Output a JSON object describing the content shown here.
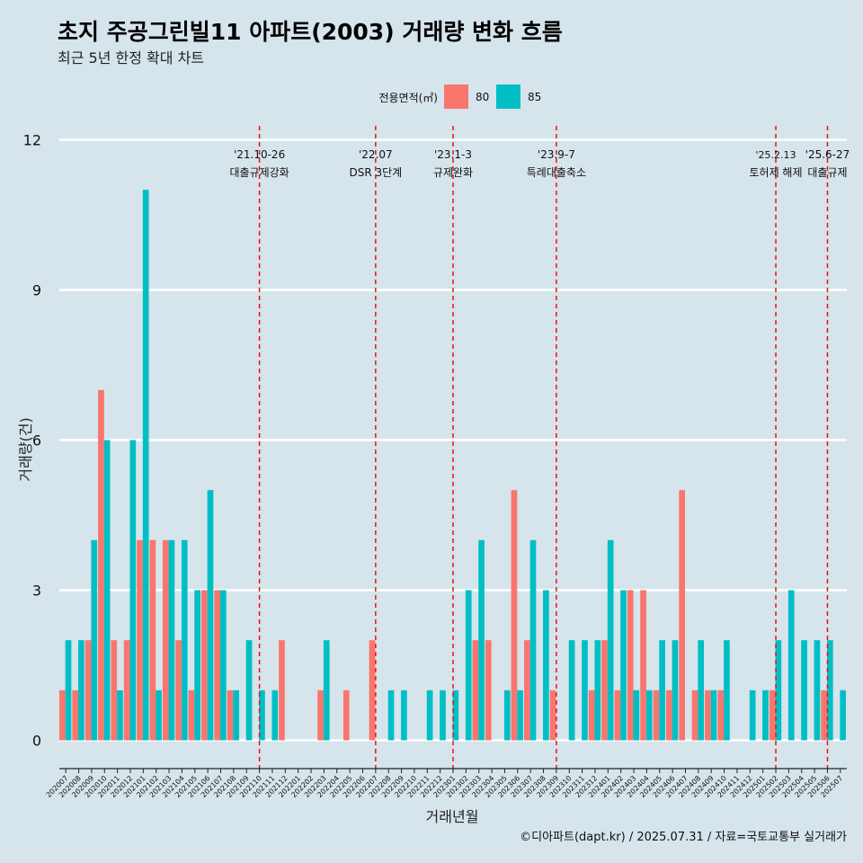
{
  "colors": {
    "s80": "#f8766d",
    "s85": "#00bfc4",
    "background": "#d6e4ec",
    "grid": "#ffffff",
    "event_line": "#ee1111"
  },
  "chart_data": {
    "type": "bar",
    "title": "초지 주공그린빌11 아파트(2003) 거래량 변화 흐름",
    "subtitle": "최근 5년 한정 확대 차트",
    "xlabel": "거래년월",
    "ylabel": "거래량(건)",
    "ylim": [
      0,
      12
    ],
    "yticks": [
      0,
      3,
      6,
      9,
      12
    ],
    "legend_title": "전용면적(㎡)",
    "legend_position": "top",
    "caption": "©디아파트(dapt.kr) / 2025.07.31 / 자료=국토교통부 실거래가",
    "categories": [
      "202007",
      "202008",
      "202009",
      "202010",
      "202011",
      "202012",
      "202101",
      "202102",
      "202103",
      "202104",
      "202105",
      "202106",
      "202107",
      "202108",
      "202109",
      "202110",
      "202111",
      "202112",
      "202201",
      "202202",
      "202203",
      "202204",
      "202205",
      "202206",
      "202207",
      "202208",
      "202209",
      "202210",
      "202211",
      "202212",
      "202301",
      "202302",
      "202303",
      "202304",
      "202305",
      "202306",
      "202307",
      "202308",
      "202309",
      "202310",
      "202311",
      "202312",
      "202401",
      "202402",
      "202403",
      "202404",
      "202405",
      "202406",
      "202407",
      "202408",
      "202409",
      "202410",
      "202411",
      "202412",
      "202501",
      "202502",
      "202503",
      "202504",
      "202505",
      "202506",
      "202507"
    ],
    "series": [
      {
        "name": "80",
        "color": "#f8766d",
        "values": [
          1,
          1,
          2,
          7,
          2,
          2,
          4,
          4,
          4,
          2,
          1,
          3,
          3,
          1,
          0,
          0,
          0,
          2,
          0,
          0,
          1,
          0,
          1,
          0,
          2,
          0,
          0,
          0,
          0,
          0,
          0,
          0,
          2,
          2,
          0,
          5,
          2,
          0,
          1,
          0,
          0,
          1,
          2,
          1,
          3,
          3,
          1,
          1,
          5,
          1,
          1,
          1,
          0,
          0,
          0,
          1,
          0,
          0,
          0,
          1,
          0
        ]
      },
      {
        "name": "85",
        "color": "#00bfc4",
        "values": [
          2,
          2,
          4,
          6,
          1,
          6,
          11,
          1,
          4,
          4,
          3,
          5,
          3,
          1,
          2,
          1,
          1,
          0,
          0,
          0,
          2,
          0,
          0,
          0,
          0,
          1,
          1,
          0,
          1,
          1,
          1,
          3,
          4,
          0,
          1,
          1,
          4,
          3,
          0,
          2,
          2,
          2,
          4,
          3,
          1,
          1,
          2,
          2,
          0,
          2,
          1,
          2,
          0,
          1,
          1,
          2,
          3,
          2,
          2,
          2,
          1
        ]
      }
    ],
    "events": [
      {
        "date": "'21.10-26",
        "label": "대출규제강화",
        "category": "202110"
      },
      {
        "date": "'22.07",
        "label": "DSR 3단계",
        "category": "202207"
      },
      {
        "date": "'23.1-3",
        "label": "규제완화",
        "category": "202301"
      },
      {
        "date": "'23.9-7",
        "label": "특례대출축소",
        "category": "202309"
      },
      {
        "date": "'25.2.13",
        "label": "토허제 해제",
        "category": "202502"
      },
      {
        "date": "'25.6-27",
        "label": "대출규제",
        "category": "202506"
      }
    ]
  }
}
